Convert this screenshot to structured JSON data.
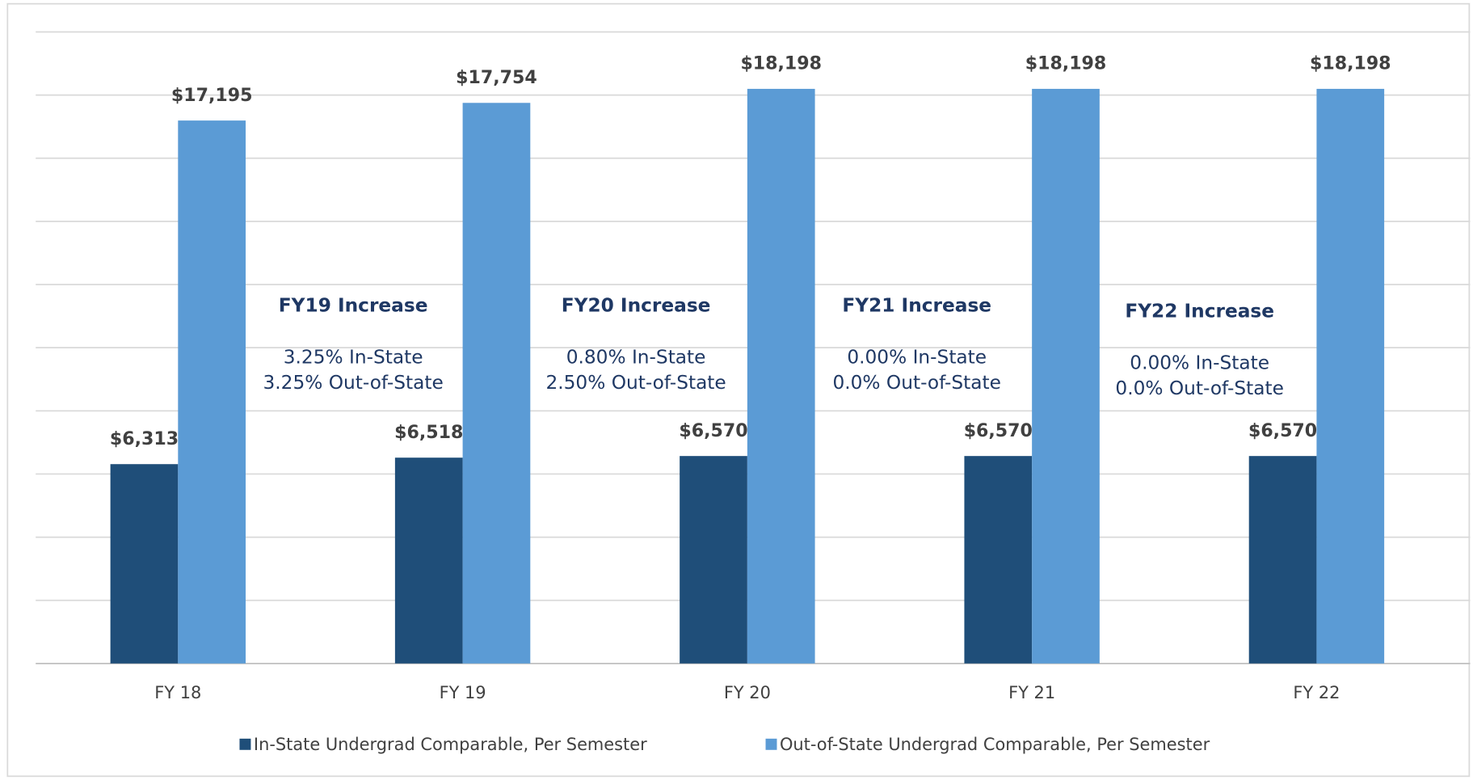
{
  "chart_data": {
    "type": "bar",
    "categories": [
      "FY 18",
      "FY 19",
      "FY 20",
      "FY 21",
      "FY 22"
    ],
    "series": [
      {
        "name": "In-State Undergrad Comparable, Per Semester",
        "color": "#1f4e79",
        "values": [
          6313,
          6518,
          6570,
          6570,
          6570
        ],
        "value_labels": [
          "$6,313",
          "$6,518",
          "$6,570",
          "$6,570",
          "$6,570"
        ]
      },
      {
        "name": "Out-of-State Undergrad Comparable, Per Semester",
        "color": "#5b9bd5",
        "values": [
          17195,
          17754,
          18198,
          18198,
          18198
        ],
        "value_labels": [
          "$17,195",
          "$17,754",
          "$18,198",
          "$18,198",
          "$18,198"
        ]
      }
    ],
    "ylim": [
      0,
      20000
    ],
    "yticks": [
      0,
      2000,
      4000,
      6000,
      8000,
      10000,
      12000,
      14000,
      16000,
      18000,
      20000
    ],
    "grid": true,
    "legend": "bottom",
    "annotations": [
      {
        "title": "FY19 Increase",
        "lines": [
          "3.25% In-State",
          "3.25% Out-of-State"
        ]
      },
      {
        "title": "FY20 Increase",
        "lines": [
          "0.80% In-State",
          "2.50% Out-of-State"
        ]
      },
      {
        "title": "FY21 Increase",
        "lines": [
          "0.00% In-State",
          "0.0% Out-of-State"
        ]
      },
      {
        "title": "FY22 Increase",
        "lines": [
          "0.00% In-State",
          "0.0% Out-of-State"
        ]
      }
    ]
  }
}
